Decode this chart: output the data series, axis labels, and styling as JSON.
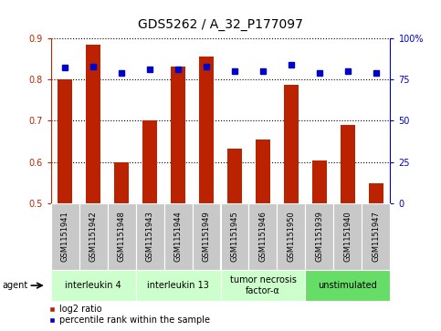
{
  "title": "GDS5262 / A_32_P177097",
  "samples": [
    "GSM1151941",
    "GSM1151942",
    "GSM1151948",
    "GSM1151943",
    "GSM1151944",
    "GSM1151949",
    "GSM1151945",
    "GSM1151946",
    "GSM1151950",
    "GSM1151939",
    "GSM1151940",
    "GSM1151947"
  ],
  "log2_ratio": [
    0.8,
    0.885,
    0.6,
    0.7,
    0.832,
    0.855,
    0.633,
    0.655,
    0.787,
    0.604,
    0.69,
    0.548
  ],
  "percentile_rank": [
    82,
    83,
    79,
    81,
    81,
    83,
    80,
    80,
    84,
    79,
    80,
    79
  ],
  "ylim_left": [
    0.5,
    0.9
  ],
  "ylim_right": [
    0,
    100
  ],
  "yticks_left": [
    0.5,
    0.6,
    0.7,
    0.8,
    0.9
  ],
  "yticks_right": [
    0,
    25,
    50,
    75,
    100
  ],
  "bar_color": "#BB2200",
  "dot_color": "#0000CC",
  "groups": [
    {
      "label": "interleukin 4",
      "start": 0,
      "end": 3,
      "color": "#CCFFCC"
    },
    {
      "label": "interleukin 13",
      "start": 3,
      "end": 6,
      "color": "#CCFFCC"
    },
    {
      "label": "tumor necrosis\nfactor-α",
      "start": 6,
      "end": 9,
      "color": "#CCFFCC"
    },
    {
      "label": "unstimulated",
      "start": 9,
      "end": 12,
      "color": "#66DD66"
    }
  ],
  "legend_bar_label": "log2 ratio",
  "legend_dot_label": "percentile rank within the sample",
  "agent_label": "agent",
  "bar_color_legend": "#BB2200",
  "dot_color_legend": "#0000CC",
  "left_axis_color": "#BB2200",
  "right_axis_color": "#0000CC",
  "title_fontsize": 10,
  "tick_fontsize": 7,
  "sample_fontsize": 6,
  "group_fontsize": 7,
  "legend_fontsize": 7
}
